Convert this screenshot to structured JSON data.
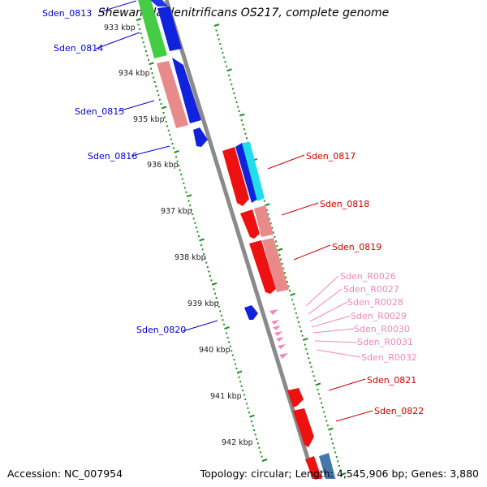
{
  "title": "Shewanella denitrificans OS217, complete genome",
  "accession": "Accession: NC_007954",
  "topology": "Topology: circular; Length: 4,545,906 bp; Genes: 3,880",
  "colors": {
    "backbone": "#8a8a8a",
    "tick": "#1f8a1f",
    "label_blue": "#0000cc",
    "label_red": "#cc0000",
    "label_pink": "#ee88bb"
  },
  "scale_labels": [
    "933 kbp",
    "934 kbp",
    "935 kbp",
    "936 kbp",
    "937 kbp",
    "938 kbp",
    "939 kbp",
    "940 kbp",
    "941 kbp",
    "942 kbp"
  ],
  "gene_labels": [
    {
      "id": "Sden_0813",
      "color": "#0000cc"
    },
    {
      "id": "Sden_0814",
      "color": "#0000cc"
    },
    {
      "id": "Sden_0815",
      "color": "#0000cc"
    },
    {
      "id": "Sden_0816",
      "color": "#0000cc"
    },
    {
      "id": "Sden_0817",
      "color": "#cc0000"
    },
    {
      "id": "Sden_0818",
      "color": "#cc0000"
    },
    {
      "id": "Sden_0819",
      "color": "#cc0000"
    },
    {
      "id": "Sden_R0026",
      "color": "#ee88bb"
    },
    {
      "id": "Sden_R0027",
      "color": "#ee88bb"
    },
    {
      "id": "Sden_R0028",
      "color": "#ee88bb"
    },
    {
      "id": "Sden_R0029",
      "color": "#ee88bb"
    },
    {
      "id": "Sden_R0030",
      "color": "#ee88bb"
    },
    {
      "id": "Sden_R0031",
      "color": "#ee88bb"
    },
    {
      "id": "Sden_R0032",
      "color": "#ee88bb"
    },
    {
      "id": "Sden_0820",
      "color": "#0000cc"
    },
    {
      "id": "Sden_0821",
      "color": "#cc0000"
    },
    {
      "id": "Sden_0822",
      "color": "#cc0000"
    }
  ]
}
